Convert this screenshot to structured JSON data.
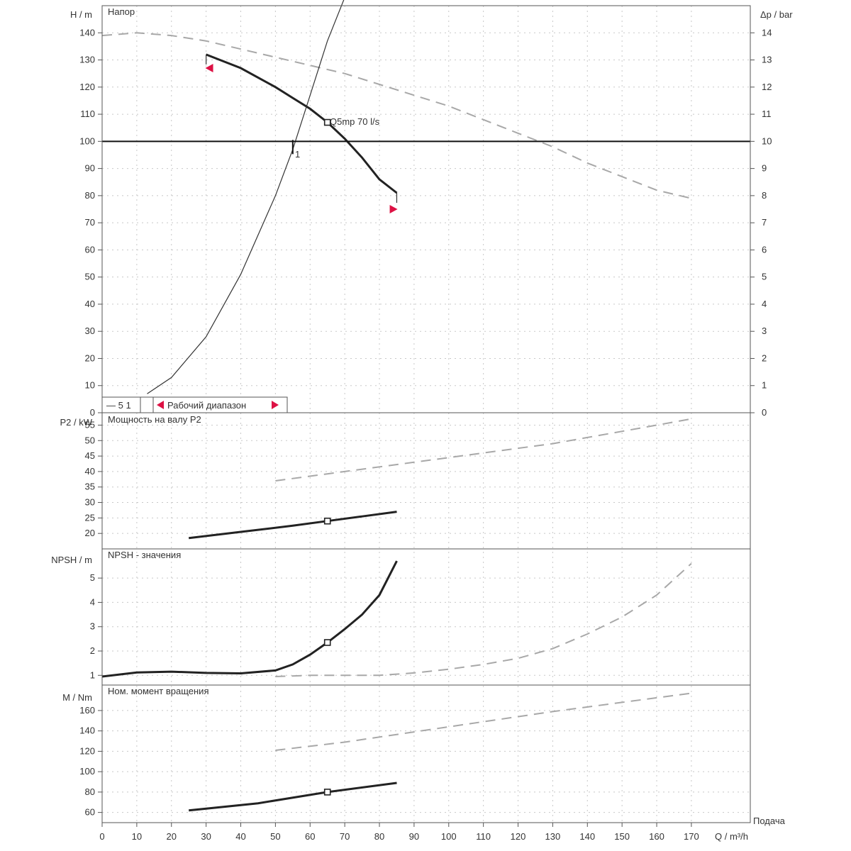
{
  "colors": {
    "curve": "#222222",
    "dashed": "#a8a8a8",
    "grid": "#c8c8c8",
    "marker": "#dd1144",
    "frame": "#555555"
  },
  "chart_data": [
    {
      "panel": "head",
      "type": "line",
      "title": "Напор",
      "ylabel": "H / m",
      "y2label": "Δp / bar",
      "ylim": [
        0,
        150
      ],
      "y2lim": [
        0,
        15
      ],
      "yticks": [
        0,
        10,
        20,
        30,
        40,
        50,
        60,
        70,
        80,
        90,
        100,
        110,
        120,
        130,
        140
      ],
      "y2ticks": [
        0,
        1,
        2,
        3,
        4,
        5,
        6,
        7,
        8,
        9,
        10,
        11,
        12,
        13,
        14
      ],
      "grid": true,
      "series": [
        {
          "style": "solid",
          "points": [
            [
              30,
              132
            ],
            [
              40,
              127
            ],
            [
              50,
              120
            ],
            [
              55,
              116
            ],
            [
              60,
              112
            ],
            [
              65,
              107
            ],
            [
              70,
              101
            ],
            [
              75,
              94
            ],
            [
              80,
              86
            ],
            [
              85,
              81
            ]
          ]
        },
        {
          "style": "dashed",
          "points": [
            [
              0,
              139
            ],
            [
              10,
              140
            ],
            [
              20,
              139
            ],
            [
              30,
              137
            ],
            [
              40,
              134
            ],
            [
              50,
              131
            ],
            [
              60,
              128
            ],
            [
              70,
              125
            ],
            [
              80,
              121
            ],
            [
              90,
              117
            ],
            [
              100,
              113
            ],
            [
              110,
              108
            ],
            [
              120,
              103
            ],
            [
              130,
              98
            ],
            [
              140,
              92
            ],
            [
              150,
              87
            ],
            [
              160,
              82
            ],
            [
              170,
              79
            ]
          ]
        },
        {
          "style": "thin",
          "points": [
            [
              13,
              7
            ],
            [
              20,
              13
            ],
            [
              30,
              28
            ],
            [
              40,
              51
            ],
            [
              50,
              80
            ],
            [
              55,
              97
            ],
            [
              60,
              117
            ],
            [
              65,
              137
            ],
            [
              70,
              153
            ]
          ]
        }
      ],
      "operating_point": {
        "x": 65,
        "y": 107,
        "label": "Q5mp   70 l/s"
      },
      "level_line": {
        "y": 100
      },
      "intersection": {
        "x": 55,
        "label": "1"
      },
      "range_markers": [
        {
          "x": 31,
          "y": 127,
          "dir": "left"
        },
        {
          "x": 84,
          "y": 75,
          "dir": "right"
        }
      ],
      "legend": {
        "item1": "— 5  1",
        "item2": "Рабочий диапазон"
      }
    },
    {
      "panel": "power",
      "type": "line",
      "title": "Мощность на валу P2",
      "ylabel": "P2 / kW",
      "ylim": [
        15,
        59
      ],
      "yticks": [
        20,
        25,
        30,
        35,
        40,
        45,
        50,
        55
      ],
      "grid": true,
      "series": [
        {
          "style": "solid",
          "points": [
            [
              25,
              18.5
            ],
            [
              40,
              20.5
            ],
            [
              55,
              22.5
            ],
            [
              65,
              24
            ],
            [
              75,
              25.5
            ],
            [
              85,
              27
            ]
          ]
        },
        {
          "style": "dashed",
          "points": [
            [
              50,
              37
            ],
            [
              70,
              40
            ],
            [
              90,
              43
            ],
            [
              110,
              46
            ],
            [
              130,
              49
            ],
            [
              150,
              53
            ],
            [
              170,
              57
            ]
          ]
        }
      ],
      "operating_point": {
        "x": 65,
        "y": 24
      }
    },
    {
      "panel": "npsh",
      "type": "line",
      "title": "NPSH - значения",
      "ylabel": "NPSH / m",
      "ylim": [
        0.6,
        6.2
      ],
      "yticks": [
        1,
        2,
        3,
        4,
        5
      ],
      "grid": true,
      "series": [
        {
          "style": "solid",
          "points": [
            [
              0,
              0.95
            ],
            [
              10,
              1.12
            ],
            [
              20,
              1.15
            ],
            [
              30,
              1.1
            ],
            [
              40,
              1.08
            ],
            [
              50,
              1.2
            ],
            [
              55,
              1.45
            ],
            [
              60,
              1.85
            ],
            [
              65,
              2.35
            ],
            [
              70,
              2.9
            ],
            [
              75,
              3.5
            ],
            [
              80,
              4.3
            ],
            [
              85,
              5.7
            ]
          ]
        },
        {
          "style": "dashed",
          "points": [
            [
              50,
              0.95
            ],
            [
              60,
              1.0
            ],
            [
              70,
              1.0
            ],
            [
              80,
              1.0
            ],
            [
              90,
              1.1
            ],
            [
              100,
              1.25
            ],
            [
              110,
              1.45
            ],
            [
              120,
              1.7
            ],
            [
              130,
              2.1
            ],
            [
              140,
              2.7
            ],
            [
              150,
              3.4
            ],
            [
              160,
              4.3
            ],
            [
              170,
              5.6
            ]
          ]
        }
      ],
      "operating_point": {
        "x": 65,
        "y": 2.35
      }
    },
    {
      "panel": "torque",
      "type": "line",
      "title": "Ном. момент вращения",
      "ylabel": "M / Nm",
      "ylim": [
        50,
        185
      ],
      "yticks": [
        60,
        80,
        100,
        120,
        140,
        160
      ],
      "grid": true,
      "series": [
        {
          "style": "solid",
          "points": [
            [
              25,
              62
            ],
            [
              45,
              69
            ],
            [
              65,
              80
            ],
            [
              85,
              89
            ]
          ]
        },
        {
          "style": "dashed",
          "points": [
            [
              50,
              121
            ],
            [
              70,
              129
            ],
            [
              90,
              139
            ],
            [
              110,
              149
            ],
            [
              130,
              159
            ],
            [
              150,
              168
            ],
            [
              170,
              177
            ]
          ]
        }
      ],
      "operating_point": {
        "x": 65,
        "y": 80
      }
    }
  ],
  "x_axis": {
    "label": "Q / m³/h",
    "ticks": [
      0,
      10,
      20,
      30,
      40,
      50,
      60,
      70,
      80,
      90,
      100,
      110,
      120,
      130,
      140,
      150,
      160,
      170
    ],
    "xlim": [
      0,
      187
    ],
    "corner_label": "Подача"
  }
}
